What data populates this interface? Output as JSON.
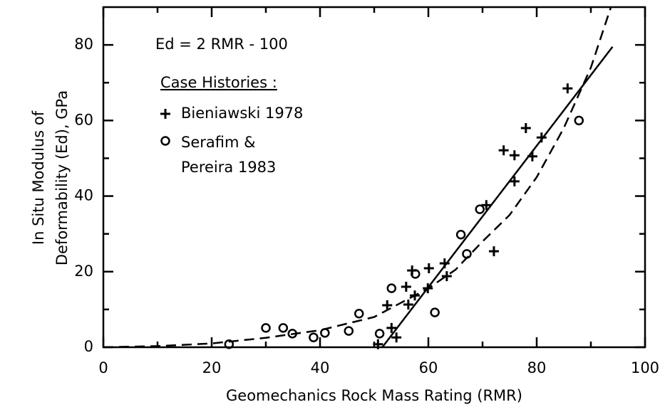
{
  "chart_data": {
    "type": "scatter",
    "xlabel": "Geomechanics Rock Mass Rating (RMR)",
    "ylabel": [
      "In Situ Modulus of",
      "Deformability (Ed), GPa"
    ],
    "annotation": "Ed = 2 RMR - 100",
    "legend_title": "Case Histories :",
    "xlim": [
      0,
      100
    ],
    "ylim": [
      0,
      90
    ],
    "xticks": [
      0,
      20,
      40,
      60,
      80,
      100
    ],
    "xminorticks": [
      10,
      30,
      50,
      70,
      90
    ],
    "yticks": [
      0,
      20,
      40,
      60,
      80
    ],
    "yminorticks": [
      10,
      30,
      50,
      70
    ],
    "series": [
      {
        "name": "Bieniawski 1978",
        "color": "#000000",
        "marker": "plus",
        "x": [
          50.7,
          53.2,
          54.1,
          52.4,
          55.9,
          57.0,
          57.5,
          59.9,
          60.1,
          63.0,
          63.4,
          56.3,
          70.7,
          72.1,
          73.9,
          75.9,
          78.0,
          75.9,
          79.2,
          80.9,
          85.7
        ],
        "values": [
          0.8,
          5.1,
          2.6,
          11.1,
          16.0,
          20.3,
          13.7,
          15.6,
          20.9,
          22.2,
          18.8,
          11.3,
          37.6,
          25.4,
          52.1,
          50.8,
          58.0,
          43.9,
          50.5,
          55.5,
          68.5
        ]
      },
      {
        "name": "Serafim & Pereira 1983",
        "color": "#000000",
        "marker": "circle",
        "x": [
          23.2,
          30.0,
          33.2,
          34.9,
          38.8,
          40.9,
          45.3,
          47.2,
          51.0,
          53.2,
          57.6,
          61.2,
          66.0,
          67.1,
          69.5,
          87.8
        ],
        "values": [
          0.8,
          5.1,
          5.1,
          3.6,
          2.6,
          3.8,
          4.3,
          8.9,
          3.6,
          15.6,
          19.4,
          9.2,
          29.8,
          24.7,
          36.5,
          60.0
        ]
      }
    ],
    "lines": [
      {
        "style": "solid",
        "color": "#000000",
        "x": [
          51.5,
          94.0
        ],
        "values": [
          0,
          79.5
        ]
      },
      {
        "style": "dashed",
        "color": "#000000",
        "x": [
          0,
          10,
          20,
          30,
          40,
          50,
          60,
          65,
          70,
          75,
          80,
          85,
          90,
          93.7
        ],
        "values": [
          0,
          0.3,
          1,
          2.5,
          4.5,
          8,
          15.6,
          20.5,
          28,
          35,
          45,
          58,
          74,
          90
        ]
      }
    ]
  }
}
